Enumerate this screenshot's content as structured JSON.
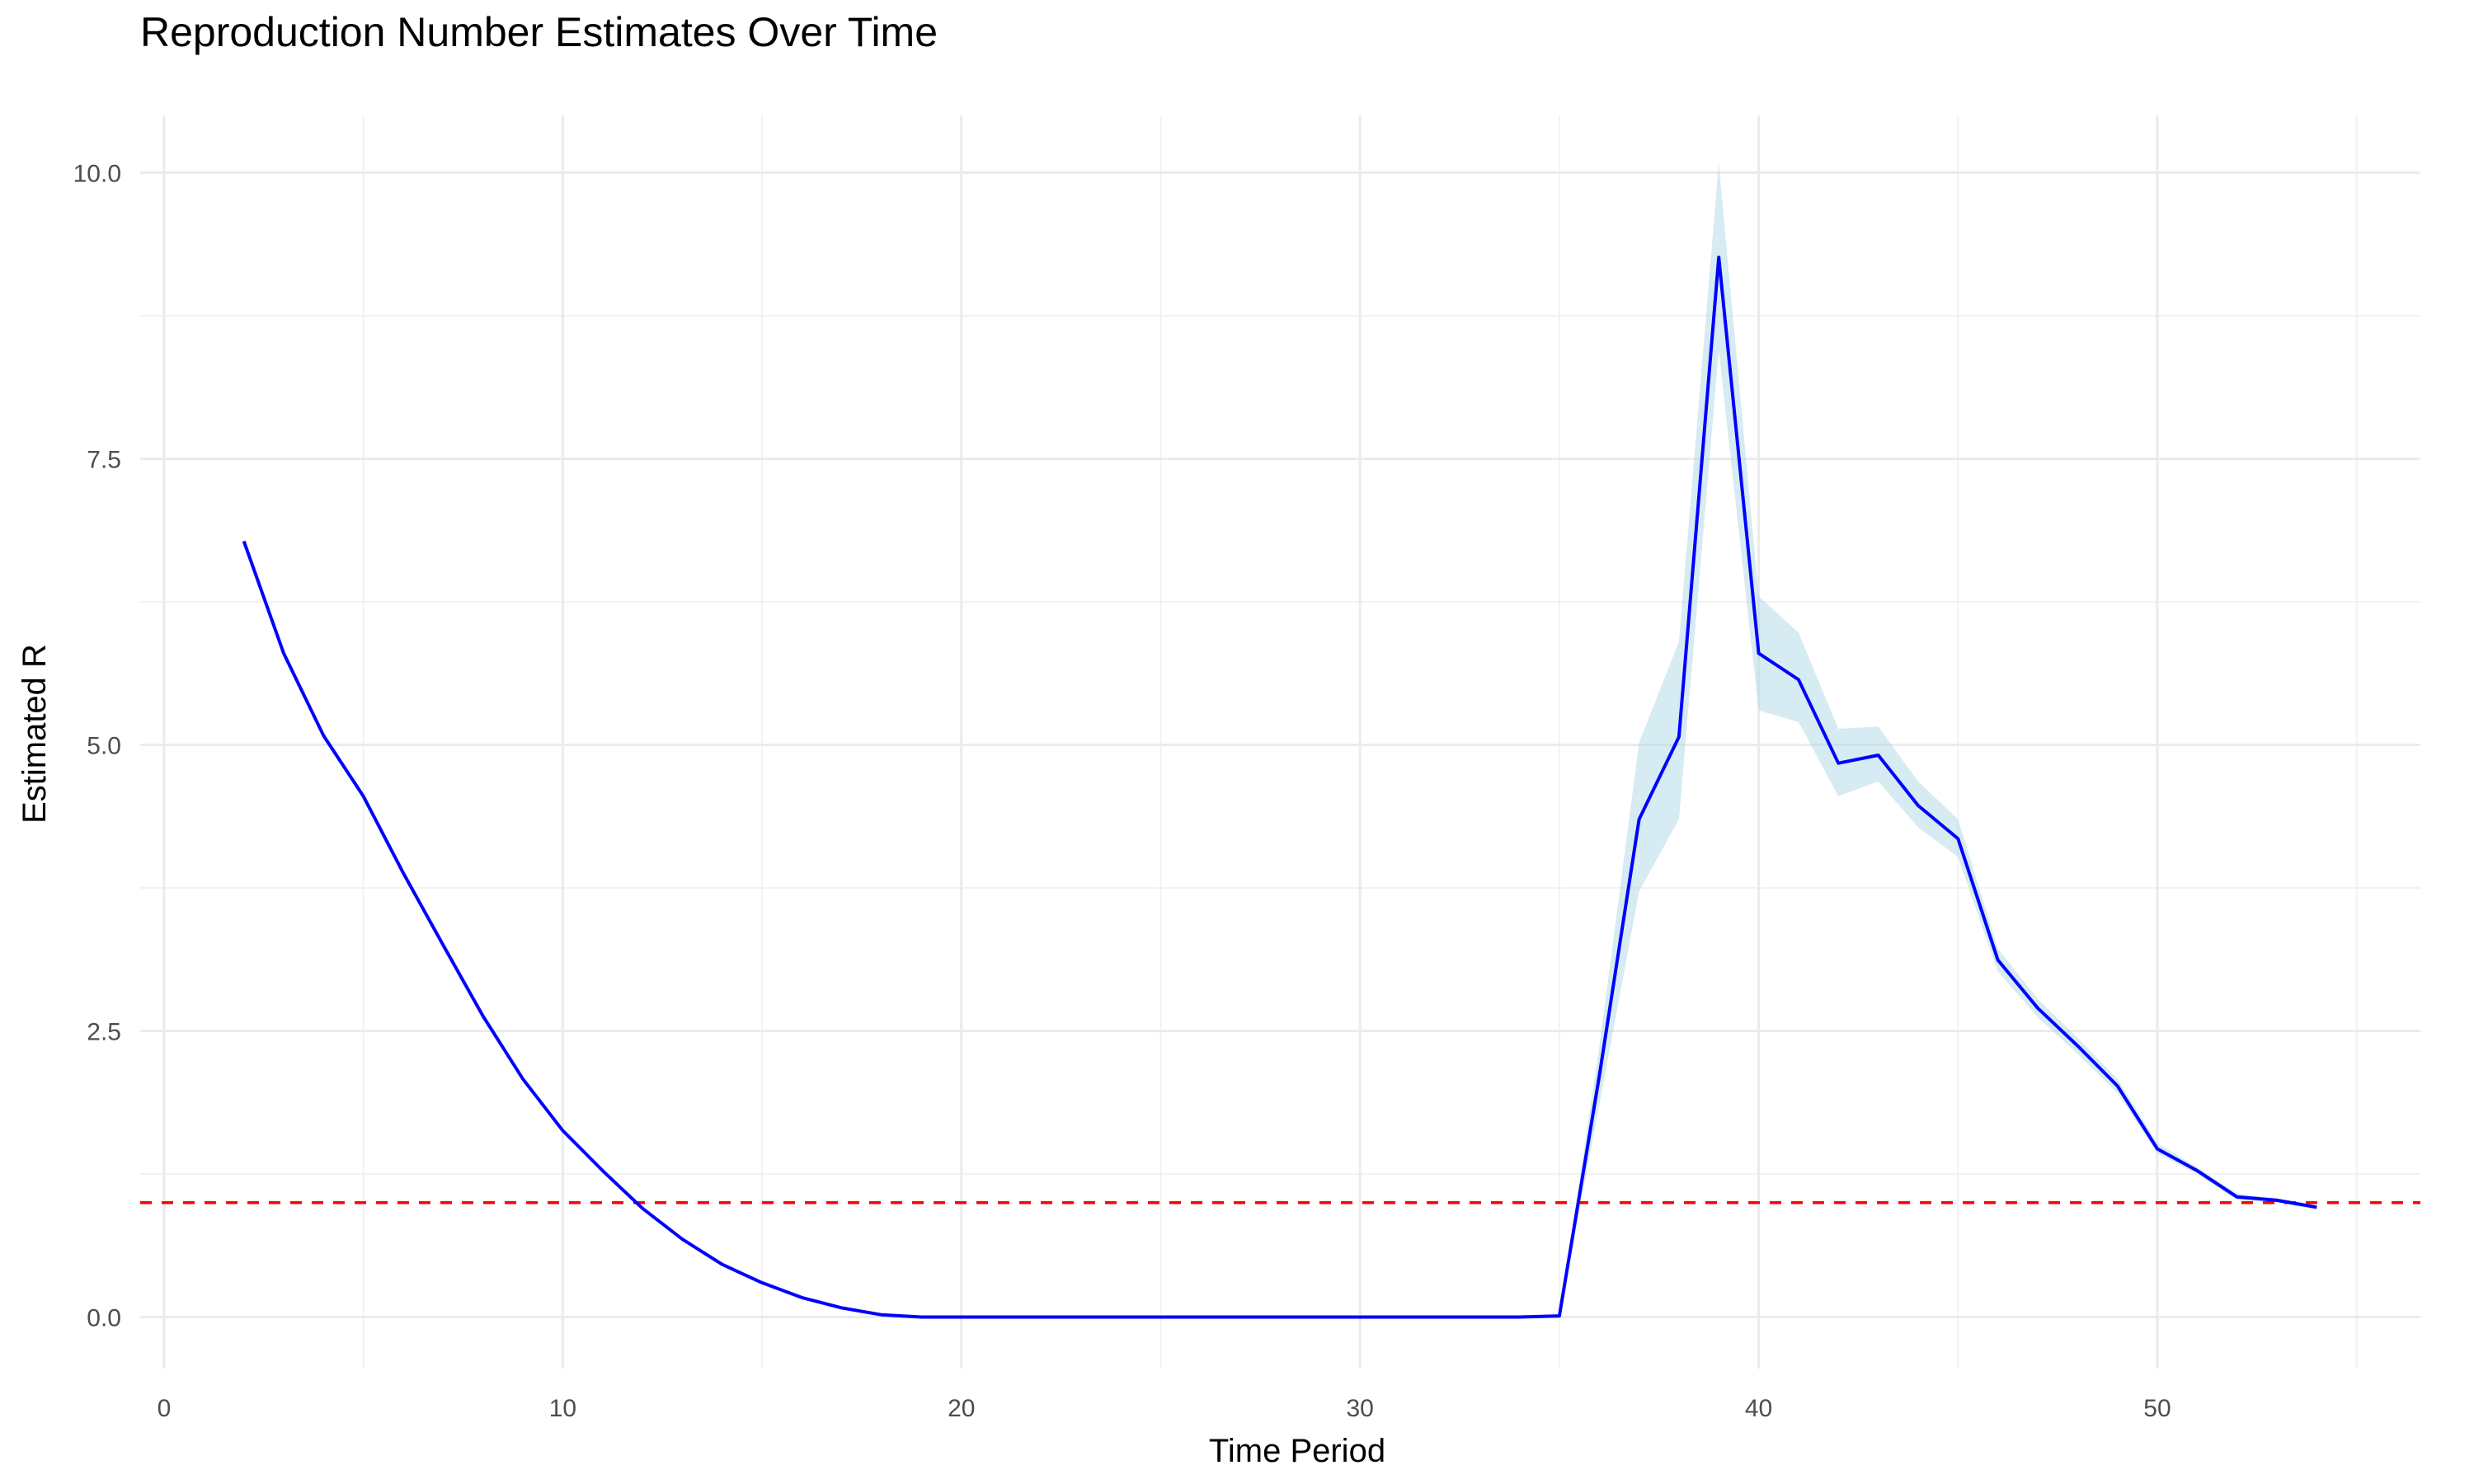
{
  "chart_data": {
    "type": "line",
    "title": "Reproduction Number Estimates Over Time",
    "xlabel": "Time Period",
    "ylabel": "Estimated R",
    "xlim": [
      -0.6,
      56.6
    ],
    "ylim": [
      -0.45,
      10.5
    ],
    "xticks": [
      0,
      10,
      20,
      30,
      40,
      50
    ],
    "xtick_labels": [
      "0",
      "10",
      "20",
      "30",
      "40",
      "50"
    ],
    "yticks": [
      0,
      2.5,
      5,
      7.5,
      10
    ],
    "ytick_labels": [
      "0.0",
      "2.5",
      "5.0",
      "7.5",
      "10.0"
    ],
    "grid": true,
    "x": [
      2,
      3,
      4,
      5,
      6,
      7,
      8,
      9,
      10,
      11,
      12,
      13,
      14,
      15,
      16,
      17,
      18,
      19,
      20,
      21,
      22,
      23,
      24,
      25,
      26,
      27,
      28,
      29,
      30,
      31,
      32,
      33,
      34,
      35,
      36,
      37,
      38,
      39,
      40,
      41,
      42,
      43,
      44,
      45,
      46,
      47,
      48,
      49,
      50,
      51,
      52,
      53,
      54
    ],
    "series": [
      {
        "role": "estimate",
        "color": "#0000ff",
        "values": [
          6.78,
          5.8,
          5.08,
          4.55,
          3.88,
          3.25,
          2.63,
          2.08,
          1.63,
          1.28,
          0.95,
          0.68,
          0.46,
          0.3,
          0.17,
          0.08,
          0.02,
          0.0,
          0.0,
          0.0,
          0.0,
          0.0,
          0.0,
          0.0,
          0.0,
          0.0,
          0.0,
          0.0,
          0.0,
          0.0,
          0.0,
          0.0,
          0.0,
          0.01,
          2.1,
          4.35,
          5.07,
          9.26,
          5.8,
          5.57,
          4.84,
          4.91,
          4.47,
          4.18,
          3.12,
          2.7,
          2.37,
          2.02,
          1.47,
          1.28,
          1.05,
          1.02,
          0.96
        ]
      },
      {
        "role": "ci_lower",
        "color": "#add8e6",
        "values": [
          6.76,
          5.79,
          5.07,
          4.54,
          3.87,
          3.24,
          2.62,
          2.07,
          1.62,
          1.27,
          0.94,
          0.67,
          0.45,
          0.29,
          0.16,
          0.07,
          0.01,
          0.0,
          0.0,
          0.0,
          0.0,
          0.0,
          0.0,
          0.0,
          0.0,
          0.0,
          0.0,
          0.0,
          0.0,
          0.0,
          0.0,
          0.0,
          0.0,
          0.0,
          1.85,
          3.72,
          4.35,
          8.45,
          5.3,
          5.2,
          4.55,
          4.68,
          4.28,
          4.02,
          3.02,
          2.62,
          2.3,
          1.96,
          1.43,
          1.25,
          1.02,
          1.0,
          0.94
        ]
      },
      {
        "role": "ci_upper",
        "color": "#add8e6",
        "values": [
          6.8,
          5.81,
          5.09,
          4.56,
          3.89,
          3.26,
          2.64,
          2.09,
          1.64,
          1.29,
          0.96,
          0.69,
          0.47,
          0.31,
          0.18,
          0.09,
          0.03,
          0.01,
          0.01,
          0.01,
          0.01,
          0.01,
          0.01,
          0.01,
          0.01,
          0.01,
          0.01,
          0.01,
          0.01,
          0.01,
          0.01,
          0.01,
          0.01,
          0.02,
          2.35,
          5.02,
          5.9,
          10.08,
          6.3,
          5.98,
          5.14,
          5.16,
          4.68,
          4.35,
          3.22,
          2.78,
          2.44,
          2.08,
          1.52,
          1.31,
          1.08,
          1.04,
          0.98
        ]
      }
    ],
    "reference_line": {
      "y": 1.0,
      "color": "#ff0000",
      "style": "dashed"
    }
  }
}
